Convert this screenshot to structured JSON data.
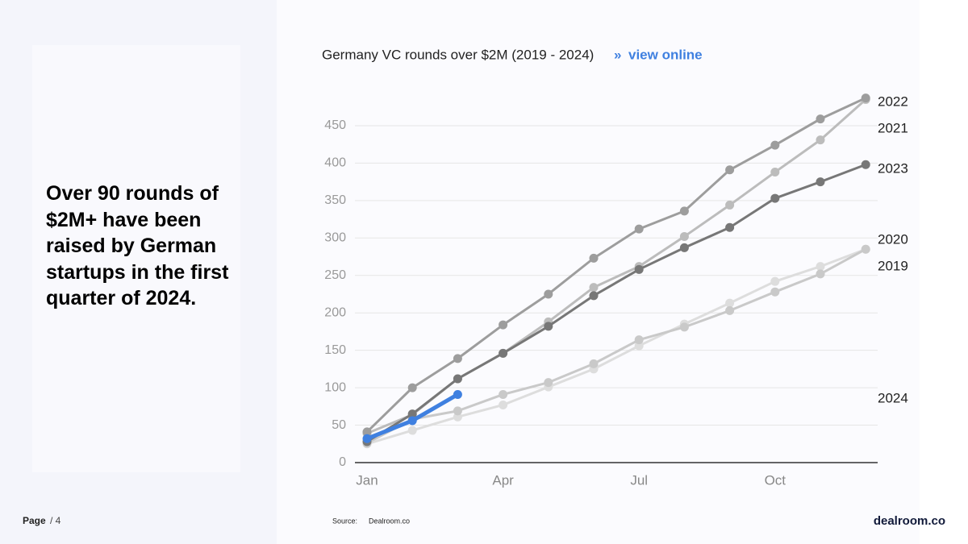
{
  "headline": "Over 90 rounds of $2M+ have been raised by German startups in the first quarter of 2024.",
  "footer": {
    "page": "Page",
    "page_number": "/ 4",
    "source_label": "Source:",
    "source": "Dealroom.co",
    "logo": "dealroom.co"
  },
  "chart_data": {
    "type": "line",
    "title": "Germany VC rounds over $2M (2019 - 2024)",
    "link_marker": "»",
    "link": "view online",
    "categories": [
      "Jan",
      null,
      null,
      "Apr",
      null,
      null,
      "Jul",
      null,
      null,
      "Oct",
      null,
      null
    ],
    "series": [
      {
        "name": "2019",
        "color": "#dddddd",
        "values": [
          25,
          43,
          61,
          77,
          101,
          125,
          156,
          185,
          213,
          242,
          262,
          285
        ]
      },
      {
        "name": "2020",
        "color": "#c9c9c9",
        "values": [
          26,
          58,
          69,
          91,
          107,
          132,
          164,
          181,
          203,
          228,
          252,
          285
        ]
      },
      {
        "name": "2021",
        "color": "#bcbcbc",
        "values": [
          39,
          64,
          112,
          146,
          188,
          234,
          262,
          302,
          344,
          388,
          431,
          485
        ]
      },
      {
        "name": "2022",
        "color": "#9d9d9d",
        "values": [
          41,
          100,
          139,
          184,
          225,
          273,
          312,
          336,
          391,
          424,
          459,
          487
        ]
      },
      {
        "name": "2023",
        "color": "#777777",
        "values": [
          28,
          65,
          112,
          146,
          182,
          223,
          258,
          287,
          314,
          353,
          375,
          398
        ]
      },
      {
        "name": "2024",
        "color": "#3f80e0",
        "values": [
          32,
          56,
          91,
          null,
          null,
          null,
          null,
          null,
          null,
          null,
          null,
          null
        ]
      }
    ],
    "ylim": [
      0,
      490
    ],
    "yticks": [
      0,
      50,
      100,
      150,
      200,
      250,
      300,
      350,
      400,
      450
    ],
    "grid": true
  }
}
